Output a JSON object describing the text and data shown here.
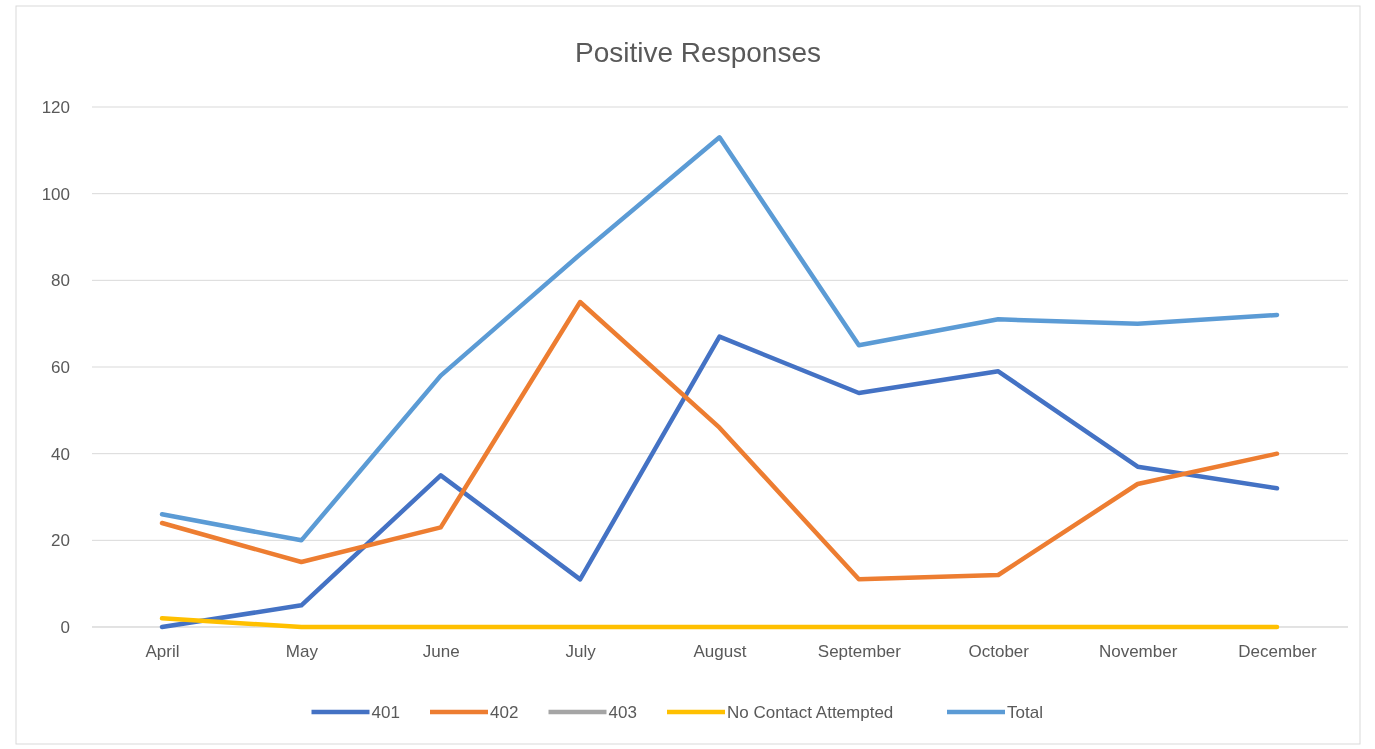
{
  "chart_data": {
    "type": "line",
    "title": "Positive Responses",
    "categories": [
      "April",
      "May",
      "June",
      "July",
      "August",
      "September",
      "October",
      "November",
      "December"
    ],
    "series": [
      {
        "name": "401",
        "color": "#4472c4",
        "values": [
          0,
          5,
          35,
          11,
          67,
          54,
          59,
          37,
          32
        ]
      },
      {
        "name": "402",
        "color": "#ed7d31",
        "values": [
          24,
          15,
          23,
          75,
          46,
          11,
          12,
          33,
          40
        ]
      },
      {
        "name": "403",
        "color": "#a5a5a5",
        "values": [
          null,
          null,
          null,
          null,
          null,
          null,
          null,
          null,
          null
        ]
      },
      {
        "name": "No Contact Attempted",
        "color": "#ffc000",
        "values": [
          2,
          0,
          0,
          0,
          0,
          0,
          0,
          0,
          0
        ]
      },
      {
        "name": "Total",
        "color": "#5b9bd5",
        "values": [
          26,
          20,
          58,
          86,
          113,
          65,
          71,
          70,
          72
        ]
      }
    ],
    "ylim": [
      0,
      120
    ],
    "yticks": [
      0,
      20,
      40,
      60,
      80,
      100,
      120
    ],
    "grid": "y",
    "legend": "bottom",
    "marker": "none",
    "line_style": "solid"
  }
}
